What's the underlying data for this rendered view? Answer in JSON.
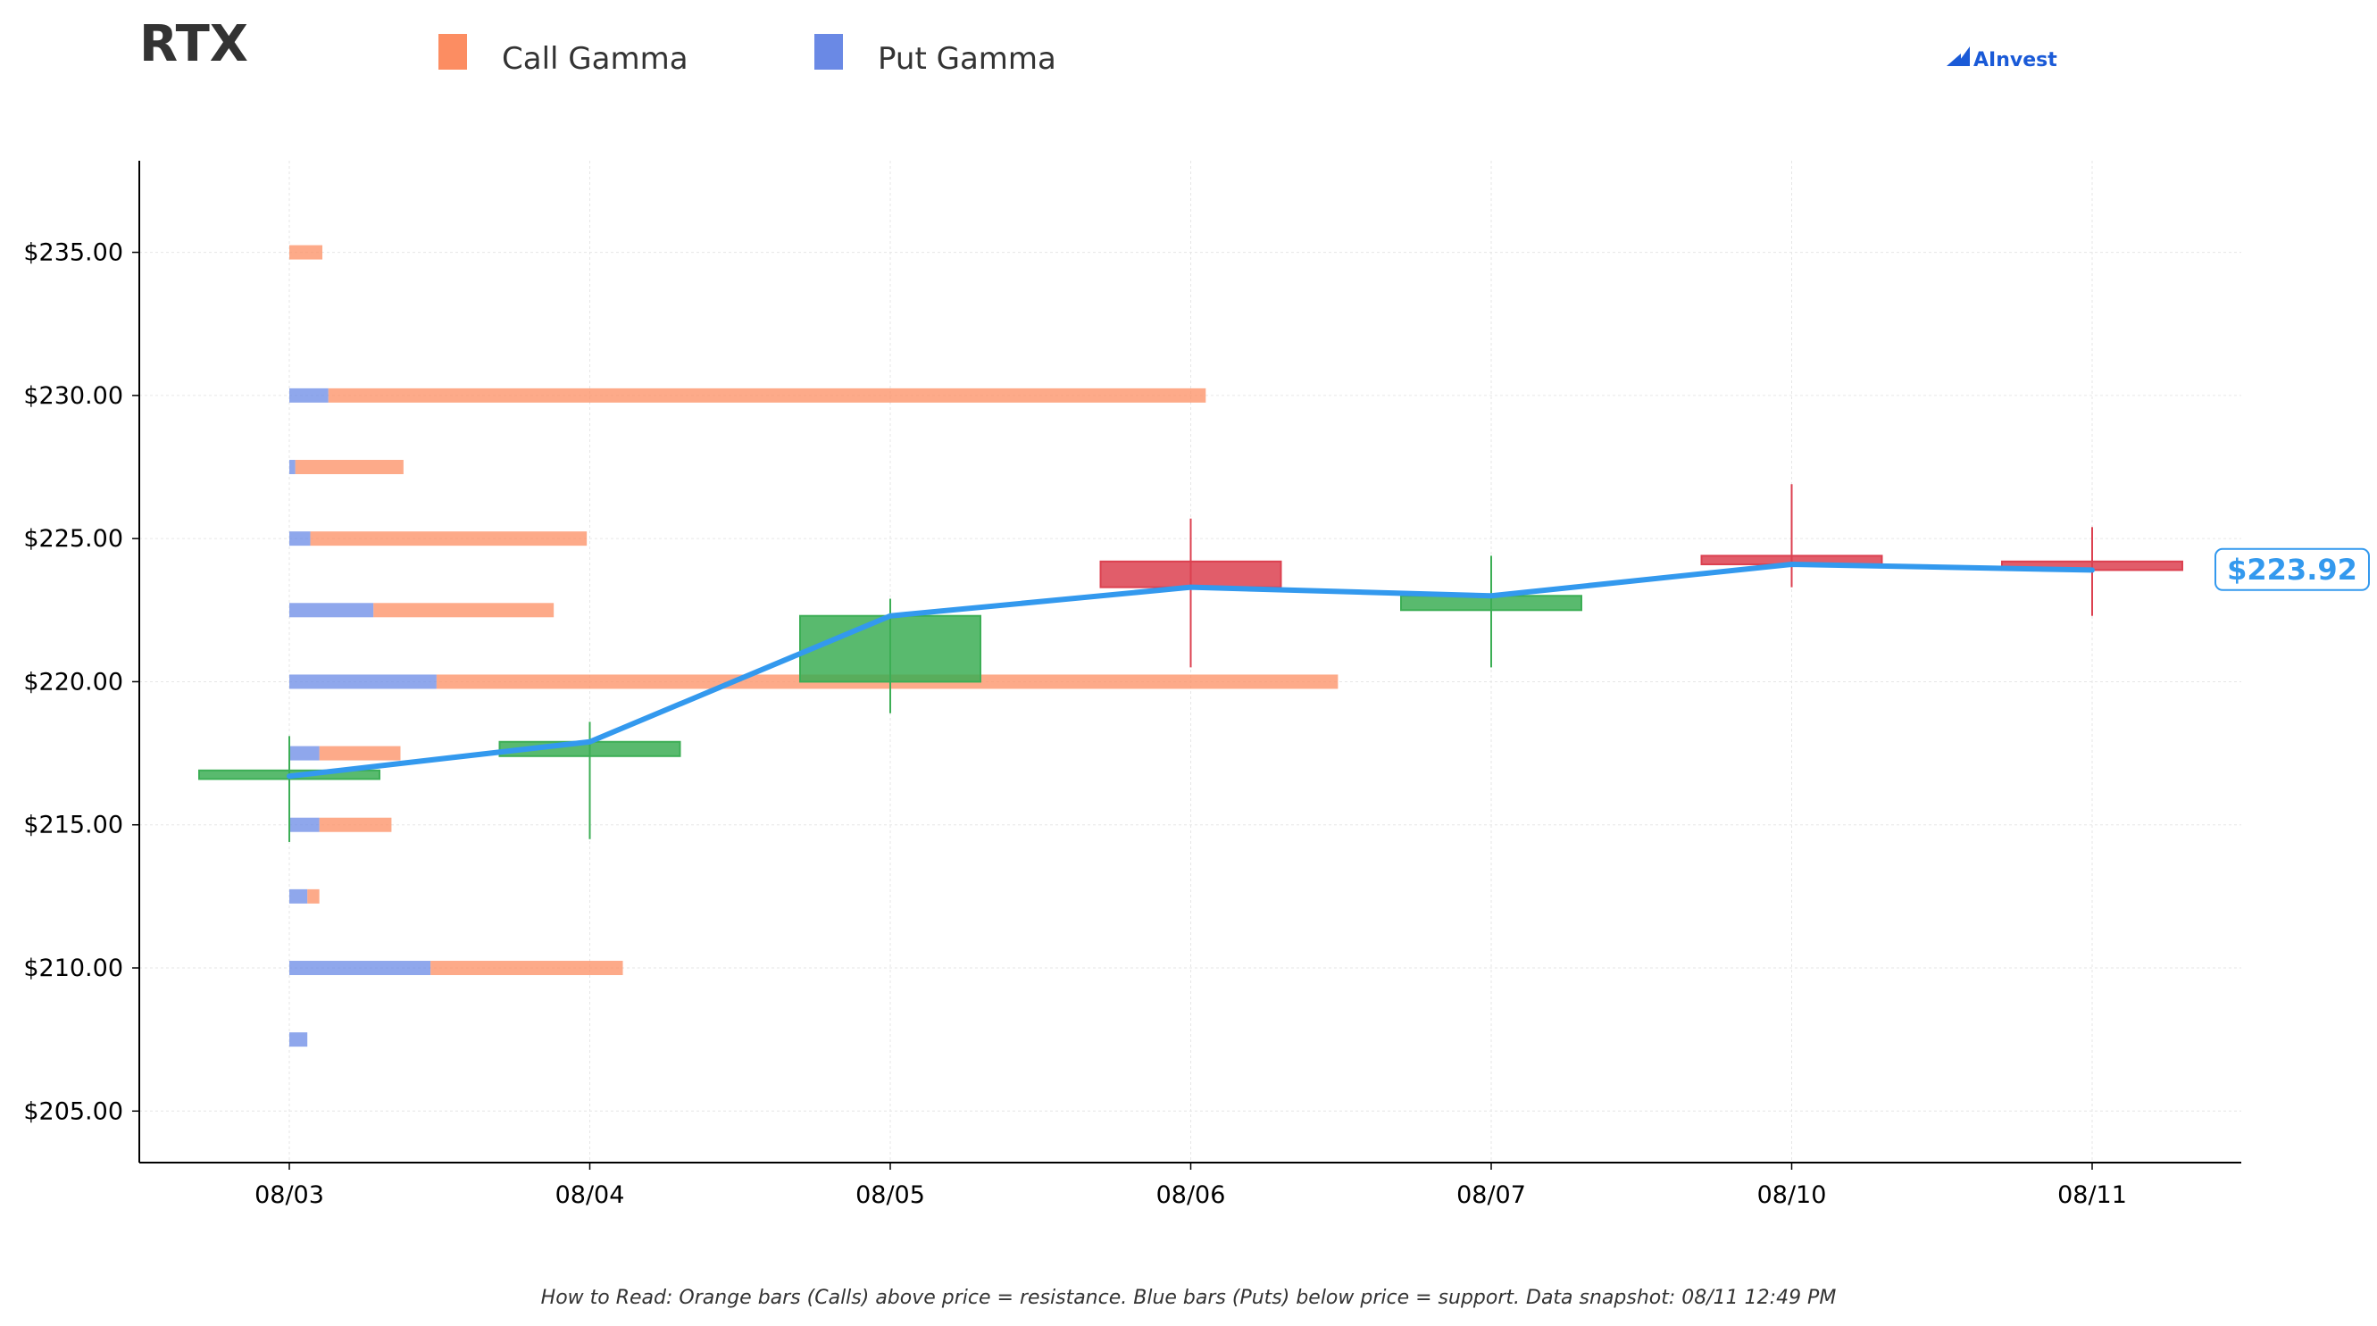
{
  "chart_data": {
    "type": "candlestick-with-gamma-bars",
    "title": "RTX",
    "legend": [
      {
        "name": "Call Gamma",
        "color": "#fc8d62"
      },
      {
        "name": "Put Gamma",
        "color": "#6a89e5"
      }
    ],
    "brand": "AInvest",
    "colors": {
      "call": "#fc8d62",
      "put": "#6a89e5",
      "up_candle": "#3cae55",
      "down_candle": "#dc4150",
      "price_line": "#3399ee"
    },
    "categories": [
      "08/03",
      "08/04",
      "08/05",
      "08/06",
      "08/07",
      "08/10",
      "08/11"
    ],
    "y_ticks": [
      205,
      210,
      215,
      220,
      225,
      230,
      235
    ],
    "y_tick_labels": [
      "$205.00",
      "$210.00",
      "$215.00",
      "$220.00",
      "$225.00",
      "$230.00",
      "$235.00"
    ],
    "ylim": [
      203.2,
      238.2
    ],
    "candles": [
      {
        "date": "08/03",
        "open": 216.6,
        "close": 216.9,
        "high": 218.1,
        "low": 214.4
      },
      {
        "date": "08/04",
        "open": 217.4,
        "close": 217.9,
        "high": 218.6,
        "low": 214.5
      },
      {
        "date": "08/05",
        "open": 220.0,
        "close": 222.3,
        "high": 222.9,
        "low": 218.9
      },
      {
        "date": "08/06",
        "open": 224.2,
        "close": 223.3,
        "high": 225.7,
        "low": 220.5
      },
      {
        "date": "08/07",
        "open": 222.5,
        "close": 223.0,
        "high": 224.4,
        "low": 220.5
      },
      {
        "date": "08/10",
        "open": 224.4,
        "close": 224.1,
        "high": 226.9,
        "low": 223.3
      },
      {
        "date": "08/11",
        "open": 224.2,
        "close": 223.9,
        "high": 225.4,
        "low": 222.3
      }
    ],
    "price_line": [
      216.7,
      217.9,
      222.3,
      223.3,
      223.0,
      224.1,
      223.9
    ],
    "gamma_bars": [
      {
        "strike": 235.0,
        "put": 0.0,
        "call": 0.11
      },
      {
        "strike": 230.0,
        "put": 0.13,
        "call": 2.92
      },
      {
        "strike": 227.5,
        "put": 0.02,
        "call": 0.36
      },
      {
        "strike": 225.0,
        "put": 0.07,
        "call": 0.92
      },
      {
        "strike": 222.5,
        "put": 0.28,
        "call": 0.6
      },
      {
        "strike": 220.0,
        "put": 0.49,
        "call": 3.0
      },
      {
        "strike": 217.5,
        "put": 0.1,
        "call": 0.27
      },
      {
        "strike": 215.0,
        "put": 0.1,
        "call": 0.24
      },
      {
        "strike": 212.5,
        "put": 0.06,
        "call": 0.04
      },
      {
        "strike": 210.0,
        "put": 0.47,
        "call": 0.64
      },
      {
        "strike": 207.5,
        "put": 0.06,
        "call": 0.0
      }
    ],
    "last_price_label": "$223.92",
    "last_price": 223.92,
    "grid": true,
    "footnote": "How to Read: Orange bars (Calls) above price = resistance. Blue bars (Puts) below price = support. Data snapshot: 08/11 12:49 PM"
  }
}
